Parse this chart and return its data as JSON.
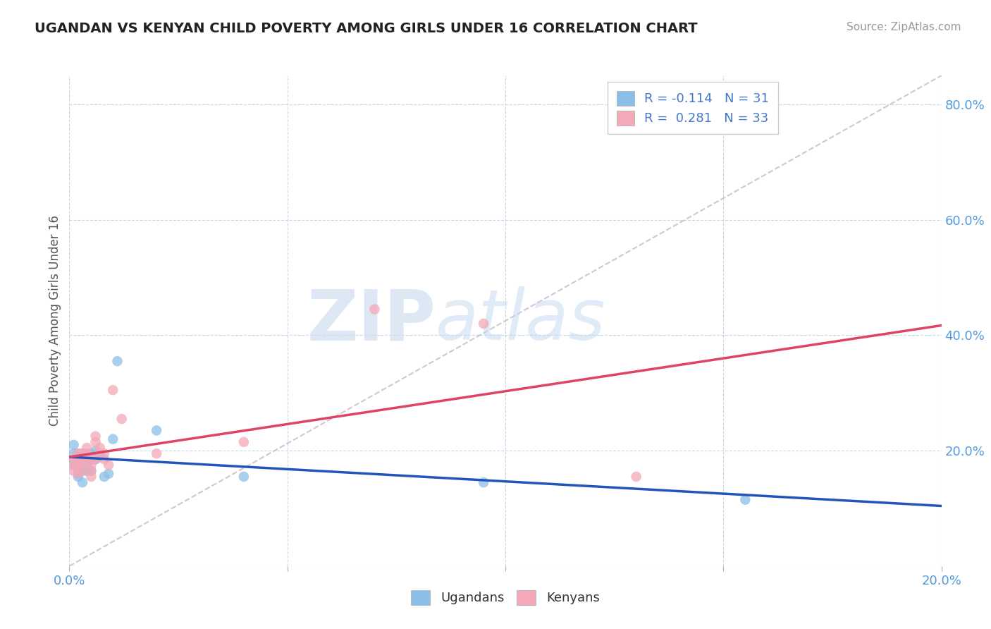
{
  "title": "UGANDAN VS KENYAN CHILD POVERTY AMONG GIRLS UNDER 16 CORRELATION CHART",
  "source": "Source: ZipAtlas.com",
  "ylabel": "Child Poverty Among Girls Under 16",
  "xlim": [
    0.0,
    0.2
  ],
  "ylim": [
    0.0,
    0.85
  ],
  "ugandan_R": -0.114,
  "ugandan_N": 31,
  "kenyan_R": 0.281,
  "kenyan_N": 33,
  "ugandan_color": "#8bbfe8",
  "kenyan_color": "#f4a8b8",
  "ugandan_line_color": "#2255bb",
  "kenyan_line_color": "#dd4466",
  "diag_color": "#c8b8c8",
  "background_color": "#ffffff",
  "grid_color": "#c8d8e8",
  "tick_color": "#5599dd",
  "ugandan_x": [
    0.001,
    0.001,
    0.001,
    0.001,
    0.002,
    0.002,
    0.002,
    0.002,
    0.002,
    0.003,
    0.003,
    0.003,
    0.003,
    0.003,
    0.004,
    0.004,
    0.004,
    0.005,
    0.005,
    0.005,
    0.006,
    0.006,
    0.007,
    0.008,
    0.009,
    0.01,
    0.011,
    0.02,
    0.04,
    0.095,
    0.155
  ],
  "ugandan_y": [
    0.195,
    0.185,
    0.175,
    0.21,
    0.185,
    0.195,
    0.16,
    0.175,
    0.155,
    0.185,
    0.175,
    0.195,
    0.165,
    0.145,
    0.185,
    0.175,
    0.165,
    0.195,
    0.185,
    0.165,
    0.2,
    0.185,
    0.19,
    0.155,
    0.16,
    0.22,
    0.355,
    0.235,
    0.155,
    0.145,
    0.115
  ],
  "kenyan_x": [
    0.001,
    0.001,
    0.001,
    0.002,
    0.002,
    0.002,
    0.002,
    0.003,
    0.003,
    0.003,
    0.003,
    0.004,
    0.004,
    0.004,
    0.005,
    0.005,
    0.005,
    0.005,
    0.006,
    0.006,
    0.006,
    0.007,
    0.007,
    0.008,
    0.008,
    0.009,
    0.01,
    0.012,
    0.02,
    0.04,
    0.07,
    0.095,
    0.13
  ],
  "kenyan_y": [
    0.185,
    0.175,
    0.165,
    0.195,
    0.185,
    0.175,
    0.16,
    0.195,
    0.185,
    0.175,
    0.165,
    0.205,
    0.195,
    0.185,
    0.185,
    0.175,
    0.165,
    0.155,
    0.225,
    0.215,
    0.185,
    0.205,
    0.195,
    0.195,
    0.185,
    0.175,
    0.305,
    0.255,
    0.195,
    0.215,
    0.445,
    0.42,
    0.155
  ]
}
